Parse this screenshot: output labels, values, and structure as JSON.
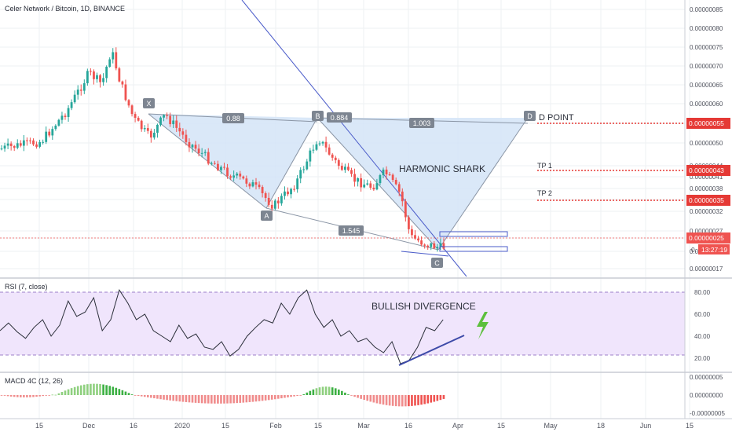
{
  "header": {
    "title": "Celer Network / Bitcoin, 1D, BINANCE"
  },
  "price_axis": {
    "ticks": [
      "0.00000085",
      "0.00000080",
      "0.00000075",
      "0.00000070",
      "0.00000065",
      "0.00000060",
      "0.00000055",
      "0.00000050",
      "0.00000044",
      "0.00000041",
      "0.00000038",
      "0.00000035",
      "0.00000032",
      "0.00000027",
      "0.00000025",
      "0.00000022",
      "0.00000017"
    ],
    "current_price": "0.00000025",
    "countdown": "13:27:19",
    "target_labels": [
      "0.00000055",
      "0.00000043",
      "0.00000035"
    ],
    "small_label": "0."
  },
  "pattern": {
    "points": {
      "x": "X",
      "a": "A",
      "b": "B",
      "c": "C",
      "d": "D"
    },
    "ratios": {
      "xb": "0.88",
      "ac": "0.884",
      "bd": "1.003",
      "xc": "1.545"
    },
    "name": "HARMONIC SHARK",
    "d_label": "D POINT",
    "tp1": "TP 1",
    "tp2": "TP 2"
  },
  "rsi": {
    "title": "RSI (7, close)",
    "ticks": [
      "80.00",
      "60.00",
      "40.00",
      "20.00"
    ],
    "annotation": "BULLISH DIVERGENCE"
  },
  "macd": {
    "title": "MACD 4C (12, 26)",
    "ticks": [
      "0.00000005",
      "0.00000000",
      "-0.00000005"
    ]
  },
  "time_axis": {
    "labels": [
      "15",
      "Dec",
      "16",
      "2020",
      "15",
      "Feb",
      "15",
      "Mar",
      "16",
      "Apr",
      "15",
      "May",
      "18",
      "Jun",
      "15"
    ]
  },
  "colors": {
    "up": "#26a69a",
    "down": "#ef5350",
    "pattern_fill": "#d4e4f7",
    "rsi_band": "#f0e5fc",
    "target": "#e53935",
    "trend": "#4a5bc9",
    "lightning": "#5cbf3c"
  },
  "chart_data": {
    "type": "candlestick",
    "title": "Celer Network / Bitcoin, 1D, BINANCE",
    "y_range": [
      1.7e-07,
      8.6e-07
    ],
    "price_path": [
      [
        "2019-11-05",
        4.9e-07
      ],
      [
        "2019-11-18",
        5.1e-07
      ],
      [
        "2019-11-26",
        5.9e-07
      ],
      [
        "2019-12-03",
        6.9e-07
      ],
      [
        "2019-12-07",
        6.6e-07
      ],
      [
        "2019-12-10",
        7.5e-07
      ],
      [
        "2019-12-13",
        6.6e-07
      ],
      [
        "2019-12-17",
        5.7e-07
      ],
      [
        "2019-12-22",
        5.2e-07
      ],
      [
        "2019-12-27",
        5.8e-07
      ],
      [
        "2020-01-03",
        5.1e-07
      ],
      [
        "2020-01-10",
        4.6e-07
      ],
      [
        "2020-01-17",
        4.2e-07
      ],
      [
        "2020-01-23",
        4e-07
      ],
      [
        "2020-01-30",
        3.4e-07
      ],
      [
        "2020-02-06",
        4e-07
      ],
      [
        "2020-02-13",
        5.2e-07
      ],
      [
        "2020-02-18",
        4.6e-07
      ],
      [
        "2020-02-24",
        4.1e-07
      ],
      [
        "2020-03-01",
        3.9e-07
      ],
      [
        "2020-03-05",
        4.3e-07
      ],
      [
        "2020-03-10",
        3.7e-07
      ],
      [
        "2020-03-13",
        2.6e-07
      ],
      [
        "2020-03-18",
        2.4e-07
      ],
      [
        "2020-03-23",
        2.3e-07
      ],
      [
        "2020-03-26",
        2.5e-07
      ]
    ],
    "harmonic": {
      "X": [
        "2019-12-17",
        5.8e-07
      ],
      "A": [
        "2020-01-28",
        3.3e-07
      ],
      "B": [
        "2020-02-14",
        5.5e-07
      ],
      "C": [
        "2020-03-24",
        2.2e-07
      ],
      "D": [
        "2020-04-27",
        5.5e-07
      ]
    },
    "targets": {
      "D": 5.5e-07,
      "TP1": 4.3e-07,
      "TP2": 3.5e-07
    },
    "rsi_values": [
      [
        0,
        45
      ],
      [
        5,
        52
      ],
      [
        10,
        44
      ],
      [
        15,
        38
      ],
      [
        20,
        48
      ],
      [
        25,
        55
      ],
      [
        30,
        40
      ],
      [
        35,
        50
      ],
      [
        40,
        72
      ],
      [
        45,
        58
      ],
      [
        50,
        62
      ],
      [
        55,
        75
      ],
      [
        60,
        45
      ],
      [
        65,
        55
      ],
      [
        70,
        82
      ],
      [
        75,
        70
      ],
      [
        80,
        55
      ],
      [
        85,
        60
      ],
      [
        90,
        45
      ],
      [
        95,
        40
      ],
      [
        100,
        35
      ],
      [
        105,
        50
      ],
      [
        110,
        38
      ],
      [
        115,
        42
      ],
      [
        120,
        30
      ],
      [
        125,
        28
      ],
      [
        130,
        35
      ],
      [
        135,
        22
      ],
      [
        140,
        28
      ],
      [
        145,
        40
      ],
      [
        150,
        48
      ],
      [
        155,
        55
      ],
      [
        160,
        52
      ],
      [
        165,
        70
      ],
      [
        170,
        60
      ],
      [
        175,
        75
      ],
      [
        180,
        82
      ],
      [
        185,
        60
      ],
      [
        190,
        48
      ],
      [
        195,
        55
      ],
      [
        200,
        40
      ],
      [
        205,
        45
      ],
      [
        210,
        35
      ],
      [
        215,
        38
      ],
      [
        220,
        30
      ],
      [
        225,
        25
      ],
      [
        230,
        35
      ],
      [
        235,
        15
      ],
      [
        240,
        18
      ],
      [
        245,
        30
      ],
      [
        250,
        48
      ],
      [
        255,
        45
      ],
      [
        260,
        55
      ]
    ],
    "rsi_range": [
      10,
      90
    ],
    "macd_hist": {
      "positive_peaks": [
        4e-08,
        3e-08
      ],
      "negative_troughs": [
        -3e-08,
        -4e-08
      ]
    }
  }
}
